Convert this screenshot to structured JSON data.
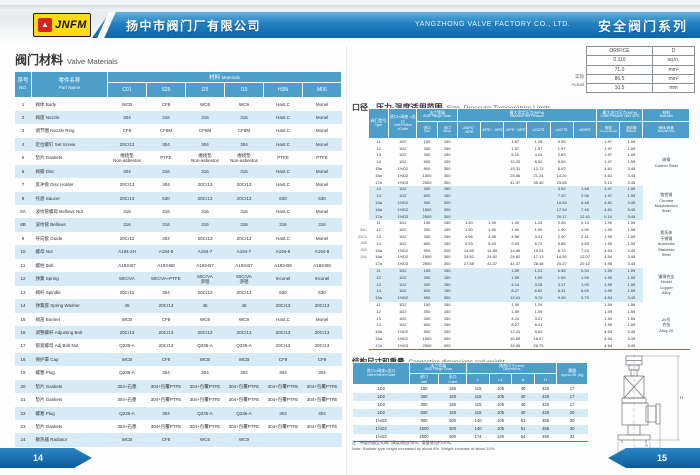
{
  "header": {
    "logo_text": "JNFM",
    "company_cn": "扬中市阀门厂有限公司",
    "company_en": "YANGZHONG VALVE FACTORY CO., LTD.",
    "series": "安全阀门系列"
  },
  "left_page": {
    "page_no": "14",
    "title_cn": "阀门材料",
    "title_en": "Valve Materials",
    "table": {
      "headers": {
        "no_cn": "序号",
        "no_en": "NO.",
        "part_cn": "零件名称",
        "part_en": "Part Name",
        "mat_cn": "材料",
        "mat_en": "Materials",
        "codes": [
          "C01",
          "S25",
          "I25",
          "I15",
          "H3N",
          "M06"
        ]
      },
      "rows": [
        [
          "1",
          "阀体 Body",
          "WCB",
          "CF8",
          "WC6",
          "WC9",
          "Hast.C",
          "Monel"
        ],
        [
          "2",
          "阀座 Nozzle",
          "304",
          "316",
          "316",
          "316",
          "Hast.C",
          "Monel"
        ],
        [
          "3",
          "调节圈 Nozzle Ring",
          "CF8",
          "CF8M",
          "CF8M",
          "CF8M",
          "Hast.C",
          "Monel"
        ],
        [
          "4",
          "定位螺钉 Set Screw",
          "20Cr13",
          "304",
          "304",
          "304",
          "Hast.C",
          "Monel"
        ],
        [
          "5",
          "垫片 Gaskets",
          "缠绕垫\nNon-asbestos",
          "PTFE",
          "缠绕垫\nNon-asbestos",
          "缠绕垫\nNon-asbestos",
          "PTFE",
          "PTFE"
        ],
        [
          "6",
          "阀瓣 Disc",
          "304",
          "316",
          "316",
          "316",
          "Hast.C",
          "Monel"
        ],
        [
          "7",
          "反冲盘 Disc Holder",
          "20Cr13",
          "304",
          "20Cr13",
          "20Cr13",
          "Hast.C",
          "Monel"
        ],
        [
          "8",
          "托盘 Saucer",
          "20Cr13",
          "630",
          "20Cr13",
          "20Cr13",
          "630",
          "630"
        ],
        [
          "8A",
          "波纹管螺母 Bellows Nut",
          "316",
          "316",
          "316",
          "316",
          "Hast.C",
          "Monel"
        ],
        [
          "8B",
          "波纹管 Bellows",
          "316",
          "316",
          "316",
          "316",
          "316",
          "316"
        ],
        [
          "9",
          "导向套 Guide",
          "20Cr13",
          "304",
          "20Cr13",
          "20Cr13",
          "Hast.C",
          "Monel"
        ],
        [
          "10",
          "螺母 Nut",
          "A194-2H",
          "A194-8",
          "A194-7",
          "A194-7",
          "A194-8",
          "A194-8"
        ],
        [
          "11",
          "螺柱 Bolt",
          "A193-B7",
          "A193-B8",
          "A193-B7",
          "A193-B7",
          "A193-B8",
          "A193-B8"
        ],
        [
          "12",
          "弹簧 Spring",
          "50CrVA",
          "50CrVA+PTFE",
          "50CrVA\n渗铝",
          "50CrVA\n渗铝",
          "Inconel",
          "Inconel"
        ],
        [
          "13",
          "阀杆 Spindle",
          "20Cr13",
          "304",
          "20Cr13",
          "20Cr13",
          "630",
          "630"
        ],
        [
          "14",
          "弹簧座 Spring Washer",
          "45",
          "20Cr13",
          "45",
          "45",
          "20Cr13",
          "20Cr13"
        ],
        [
          "15",
          "阀盖 Bonnet",
          "WCB",
          "CF8",
          "WC6",
          "WC9",
          "Hast.C",
          "Monel"
        ],
        [
          "16",
          "调整螺杆 Adjusting Bolt",
          "20Cr13",
          "20Cr13",
          "20Cr13",
          "20Cr13",
          "20Cr13",
          "20Cr13"
        ],
        [
          "17",
          "锁紧螺母 Adj.Bolt Nut",
          "Q235-A",
          "20Cr13",
          "Q235-A",
          "Q235-A",
          "20Cr13",
          "20Cr13"
        ],
        [
          "18",
          "保护罩 Cap",
          "WCB",
          "CF8",
          "WCB",
          "WCB",
          "CF8",
          "CF8"
        ],
        [
          "19",
          "螺塞 Plug",
          "Q235-A",
          "304",
          "304",
          "304",
          "304",
          "304"
        ],
        [
          "20",
          "垫片 Gaskets",
          "304+石墨",
          "304+包覆PTFE",
          "304+包覆PTFE",
          "304+包覆PTFE",
          "304+包覆PTFE",
          "304+包覆PTFE"
        ],
        [
          "21",
          "垫片 Gaskets",
          "304+石墨",
          "304+包覆PTFE",
          "304+包覆PTFE",
          "304+包覆PTFE",
          "304+包覆PTFE",
          "304+包覆PTFE"
        ],
        [
          "22",
          "螺塞 Plug",
          "Q235-A",
          "304",
          "Q235-A",
          "Q235-A",
          "304",
          "304"
        ],
        [
          "23",
          "垫片 Gaskets",
          "304+石墨",
          "304+包覆PTFE",
          "304+包覆PTFE",
          "304+包覆PTFE",
          "304+包覆PTFE",
          "304+包覆PTFE"
        ],
        [
          "24",
          "散热器 Radiator",
          "WCB",
          "CF8",
          "WC6",
          "WC9",
          "",
          ""
        ]
      ]
    }
  },
  "right_page": {
    "page_no": "15",
    "orifice_table": {
      "label_cn": "实际",
      "label_en": "Actual",
      "rows": [
        [
          "ORIFICE",
          "D"
        ],
        [
          "0.110",
          "sq.in."
        ],
        [
          "71.0",
          "mm²"
        ],
        [
          "86.5",
          "mm²"
        ],
        [
          "10.5",
          "mm"
        ]
      ]
    },
    "pt_title_cn": "口径、压力-温度适用范围",
    "pt_title_en": "Size, Pressure-Temperature Limits",
    "pt_table": {
      "headers": {
        "type_cn": "阀门型号",
        "type_en": "Type",
        "size_cn": "进口×阀座\n×出口",
        "size_en": "Inlet×Orifice\n×Outlet",
        "flange_cn": "法兰等级",
        "flange_en": "ANSI Flange\nClass",
        "inlet_cn": "进口",
        "inlet_en": "Inlet",
        "outlet_cn": "出口",
        "outlet_en": "Outlet",
        "setp_cn": "最大设定压力(MPa)",
        "setp_en": "Maximum Set Pressure",
        "temps": [
          "-268℃~\n-46℃",
          "-45℃~\n-30℃",
          "-29℃~\n38℃",
          "≤232℃",
          "≤427℃",
          "≤538℃"
        ],
        "outp_cn": "最大出口压力(MPa)",
        "outp_en": "Outlet Pressure Limit 38℃",
        "conv_cn": "常规",
        "conv_en": "Conventional",
        "bell_cn": "波纹管",
        "bell_en": "Bellows",
        "mat_cn": "材料",
        "mat_en": "Materials",
        "body_cn": "阀体/阀盖",
        "body_en": "Body/Bonnet"
      },
      "models": [
        "JND",
        "JNCL",
        "JNB",
        "JNS",
        "JNL"
      ],
      "sections": [
        {
          "material_cn": "碳钢",
          "material_en": "Carbon Steel",
          "rows": [
            [
              "11",
              "1D2",
              "150",
              "150",
              "",
              "",
              "1.97",
              "1.28",
              "0.55",
              "",
              "1.97",
              "1.59"
            ],
            [
              "12",
              "1D2",
              "300",
              "150",
              "",
              "",
              "1.97",
              "1.97",
              "1.97",
              "",
              "1.97",
              "1.59"
            ],
            [
              "13",
              "1D2",
              "300",
              "150",
              "",
              "",
              "5.10",
              "4.24",
              "2.83",
              "",
              "1.97",
              "1.59"
            ],
            [
              "14",
              "1D2",
              "600",
              "150",
              "",
              "",
              "10.20",
              "8.52",
              "5.69",
              "",
              "1.97",
              "1.59"
            ],
            [
              "15a",
              "1½D2",
              "900",
              "300",
              "",
              "",
              "15.31",
              "12.72",
              "8.52",
              "",
              "4.81",
              "3.45"
            ],
            [
              "16a",
              "1½D2",
              "1500",
              "300",
              "",
              "",
              "25.56",
              "21.24",
              "14.20",
              "",
              "4.81",
              "3.45"
            ],
            [
              "17a",
              "1½D3",
              "2500",
              "300",
              "",
              "",
              "41.37",
              "35.40",
              "23.65",
              "",
              "5.10",
              "3.45"
            ]
          ]
        },
        {
          "material_cn": "铬钼钢",
          "material_en": "Chrome\nMolybdenum\nSteel",
          "rows": [
            [
              "13",
              "1D2",
              "300",
              "150",
              "",
              "",
              "",
              "",
              "3.52",
              "1.48",
              "1.97",
              "1.59"
            ],
            [
              "14",
              "1D2",
              "600",
              "150",
              "",
              "",
              "",
              "",
              "7.20",
              "2.96",
              "1.97",
              "1.59"
            ],
            [
              "15a",
              "1½D2",
              "900",
              "300",
              "",
              "",
              "",
              "",
              "10.54",
              "4.48",
              "4.81",
              "3.45"
            ],
            [
              "16a",
              "1½D2",
              "1500",
              "300",
              "",
              "",
              "",
              "",
              "17.54",
              "7.45",
              "4.81",
              "3.45"
            ],
            [
              "17a",
              "1½D3",
              "2500",
              "300",
              "",
              "",
              "",
              "",
              "29.17",
              "12.41",
              "5.10",
              "3.45"
            ]
          ]
        },
        {
          "material_cn": "奥氏体\n不锈钢",
          "material_en": "Austenitic\nStainless\nSteel",
          "rows": [
            [
              "11",
              "1D2",
              "150",
              "150",
              "1.90",
              "1.90",
              "1.90",
              "1.24",
              "0.55",
              "0.14",
              "1.90",
              "1.59"
            ],
            [
              "12",
              "1D2",
              "300",
              "150",
              "1.90",
              "1.90",
              "1.90",
              "1.90",
              "1.90",
              "1.90",
              "1.90",
              "1.59"
            ],
            [
              "13",
              "1D2",
              "300",
              "150",
              "4.96",
              "4.96",
              "4.96",
              "3.41",
              "2.90",
              "2.41",
              "1.90",
              "1.59"
            ],
            [
              "14",
              "1D2",
              "600",
              "150",
              "9.93",
              "9.93",
              "9.93",
              "6.72",
              "5.85",
              "4.83",
              "1.90",
              "1.59"
            ],
            [
              "15a",
              "1½D2",
              "900",
              "300",
              "14.89",
              "14.89",
              "14.89",
              "10.24",
              "8.72",
              "7.24",
              "4.54",
              "3.45"
            ],
            [
              "16a",
              "1½D2",
              "1500",
              "300",
              "24.82",
              "24.82",
              "24.82",
              "17.13",
              "14.55",
              "12.07",
              "4.54",
              "3.45"
            ],
            [
              "17a",
              "1½D3",
              "2500",
              "300",
              "27.58",
              "41.37",
              "41.37",
              "28.48",
              "24.27",
              "20.10",
              "4.96",
              "3.45"
            ]
          ]
        },
        {
          "material_cn": "镍铜合金",
          "material_en": "Nickel\nCopper\nAlloy",
          "rows": [
            [
              "11",
              "1D2",
              "150",
              "150",
              "",
              "",
              "1.59",
              "1.21",
              "0.55",
              "0.34",
              "1.59",
              "1.59"
            ],
            [
              "12",
              "1D2",
              "300",
              "150",
              "",
              "",
              "1.59",
              "1.59",
              "1.59",
              "1.59",
              "1.59",
              "1.59"
            ],
            [
              "13",
              "1D2",
              "300",
              "150",
              "",
              "",
              "4.14",
              "3.28",
              "3.17",
              "1.93",
              "1.59",
              "1.59"
            ],
            [
              "14",
              "1D2",
              "600",
              "150",
              "",
              "",
              "8.27",
              "6.52",
              "6.31",
              "5.69",
              "1.59",
              "1.59"
            ],
            [
              "15a",
              "1½D2",
              "900",
              "300",
              "",
              "",
              "12.41",
              "9.79",
              "9.45",
              "3.79",
              "4.54",
              "3.45"
            ]
          ]
        },
        {
          "material_cn": "20号\n合金",
          "material_en": "Alloy 20",
          "rows": [
            [
              "11",
              "1D2",
              "150",
              "150",
              "",
              "",
              "1.59",
              "1.24",
              "",
              "",
              "1.59",
              "1.59"
            ],
            [
              "12",
              "1D2",
              "300",
              "150",
              "",
              "",
              "1.59",
              "1.59",
              "",
              "",
              "1.59",
              "1.59"
            ],
            [
              "13",
              "1D2",
              "300",
              "150",
              "",
              "",
              "4.14",
              "3.21",
              "",
              "",
              "1.59",
              "1.59"
            ],
            [
              "14",
              "1D2",
              "600",
              "150",
              "",
              "",
              "8.27",
              "6.41",
              "",
              "",
              "1.59",
              "1.59"
            ],
            [
              "15a",
              "1½D2",
              "900",
              "300",
              "",
              "",
              "12.41",
              "9.62",
              "",
              "",
              "4.54",
              "3.45"
            ],
            [
              "16a",
              "1½D2",
              "1500",
              "300",
              "",
              "",
              "20.69",
              "16.07",
              "",
              "",
              "4.54",
              "3.45"
            ],
            [
              "17a",
              "1½D3",
              "2500",
              "300",
              "",
              "",
              "34.46",
              "26.75",
              "",
              "",
              "4.54",
              "3.45"
            ]
          ]
        }
      ]
    },
    "dims_title_cn": "结构尺寸和重量",
    "dims_title_en": "Connection dimensions and weight",
    "dims_table": {
      "headers": {
        "size_cn": "进口×阀座×出口",
        "size_en": "Inlet×Orifice×Outlet",
        "flange_cn": "法兰等级",
        "flange_en": "ANSI Flange Class",
        "inlet_cn": "进口",
        "inlet_en": "Inlet",
        "outlet_cn": "出口",
        "outlet_en": "Outlet",
        "dims_cn": "结构尺寸(mm)",
        "dims_en": "Dimensions",
        "cols": [
          "L",
          "L1",
          "A",
          "H"
        ],
        "wt_cn": "重量",
        "wt_en": "Approx.Wt.\n(kg)"
      },
      "rows": [
        [
          "1D2",
          "150",
          "150",
          "115",
          "105",
          "40",
          "425",
          "17"
        ],
        [
          "1D2",
          "300",
          "150",
          "115",
          "105",
          "40",
          "425",
          "17"
        ],
        [
          "1D2",
          "300",
          "150",
          "115",
          "105",
          "40",
          "425",
          "17"
        ],
        [
          "1D2",
          "600",
          "150",
          "115",
          "105",
          "40",
          "425",
          "20"
        ],
        [
          "1½D2",
          "900",
          "300",
          "140",
          "105",
          "51",
          "455",
          "30"
        ],
        [
          "1½D2",
          "1500",
          "300",
          "140",
          "105",
          "51",
          "455",
          "30"
        ],
        [
          "1½D3",
          "2500",
          "300",
          "174",
          "140",
          "64",
          "490",
          "32"
        ]
      ],
      "note_cn": "注：带散热器型式阀门高度增加约8%，重量增加约10%。",
      "note_en": "Note: Radiate type height increased by about 8%. Weight increase of about 10%"
    },
    "drawing_labels": {
      "h": "H",
      "a": "A",
      "l": "L"
    }
  }
}
